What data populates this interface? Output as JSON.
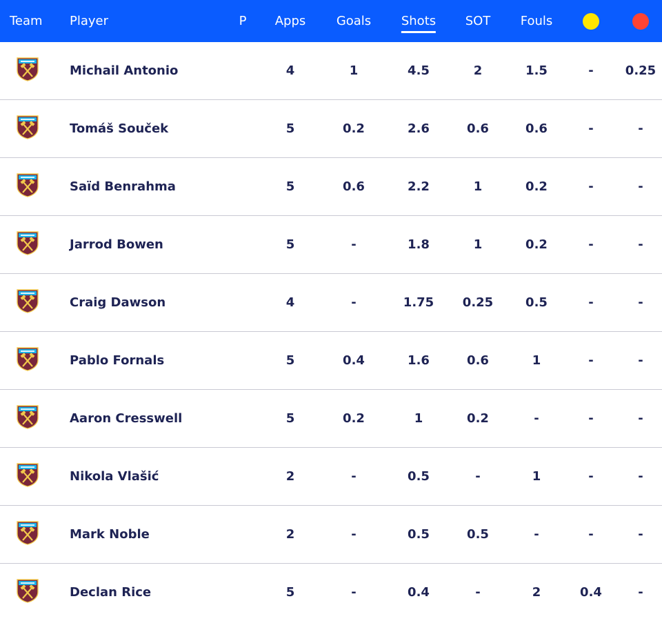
{
  "header": {
    "team": "Team",
    "player": "Player",
    "p": "P",
    "apps": "Apps",
    "goals": "Goals",
    "shots": "Shots",
    "sot": "SOT",
    "fouls": "Fouls",
    "yellow_icon": "yellow-card-icon",
    "red_icon": "red-card-icon",
    "sorted_by": "Shots"
  },
  "colors": {
    "header_bg": "#0a5cff",
    "yellow": "#ffe600",
    "red": "#ff4433",
    "text": "#1e2354",
    "crest_claret": "#7a263a",
    "crest_blue": "#1bb1e7"
  },
  "team_icon": "west-ham-crest-icon",
  "rows": [
    {
      "player": "Michail Antonio",
      "apps": "4",
      "goals": "1",
      "shots": "4.5",
      "sot": "2",
      "fouls": "1.5",
      "yellow": "-",
      "red": "0.25"
    },
    {
      "player": "Tomáš Souček",
      "apps": "5",
      "goals": "0.2",
      "shots": "2.6",
      "sot": "0.6",
      "fouls": "0.6",
      "yellow": "-",
      "red": "-"
    },
    {
      "player": "Saïd Benrahma",
      "apps": "5",
      "goals": "0.6",
      "shots": "2.2",
      "sot": "1",
      "fouls": "0.2",
      "yellow": "-",
      "red": "-"
    },
    {
      "player": "Jarrod Bowen",
      "apps": "5",
      "goals": "-",
      "shots": "1.8",
      "sot": "1",
      "fouls": "0.2",
      "yellow": "-",
      "red": "-"
    },
    {
      "player": "Craig Dawson",
      "apps": "4",
      "goals": "-",
      "shots": "1.75",
      "sot": "0.25",
      "fouls": "0.5",
      "yellow": "-",
      "red": "-"
    },
    {
      "player": "Pablo Fornals",
      "apps": "5",
      "goals": "0.4",
      "shots": "1.6",
      "sot": "0.6",
      "fouls": "1",
      "yellow": "-",
      "red": "-"
    },
    {
      "player": "Aaron Cresswell",
      "apps": "5",
      "goals": "0.2",
      "shots": "1",
      "sot": "0.2",
      "fouls": "-",
      "yellow": "-",
      "red": "-"
    },
    {
      "player": "Nikola Vlašić",
      "apps": "2",
      "goals": "-",
      "shots": "0.5",
      "sot": "-",
      "fouls": "1",
      "yellow": "-",
      "red": "-"
    },
    {
      "player": "Mark Noble",
      "apps": "2",
      "goals": "-",
      "shots": "0.5",
      "sot": "0.5",
      "fouls": "-",
      "yellow": "-",
      "red": "-"
    },
    {
      "player": "Declan Rice",
      "apps": "5",
      "goals": "-",
      "shots": "0.4",
      "sot": "-",
      "fouls": "2",
      "yellow": "0.4",
      "red": "-"
    }
  ]
}
